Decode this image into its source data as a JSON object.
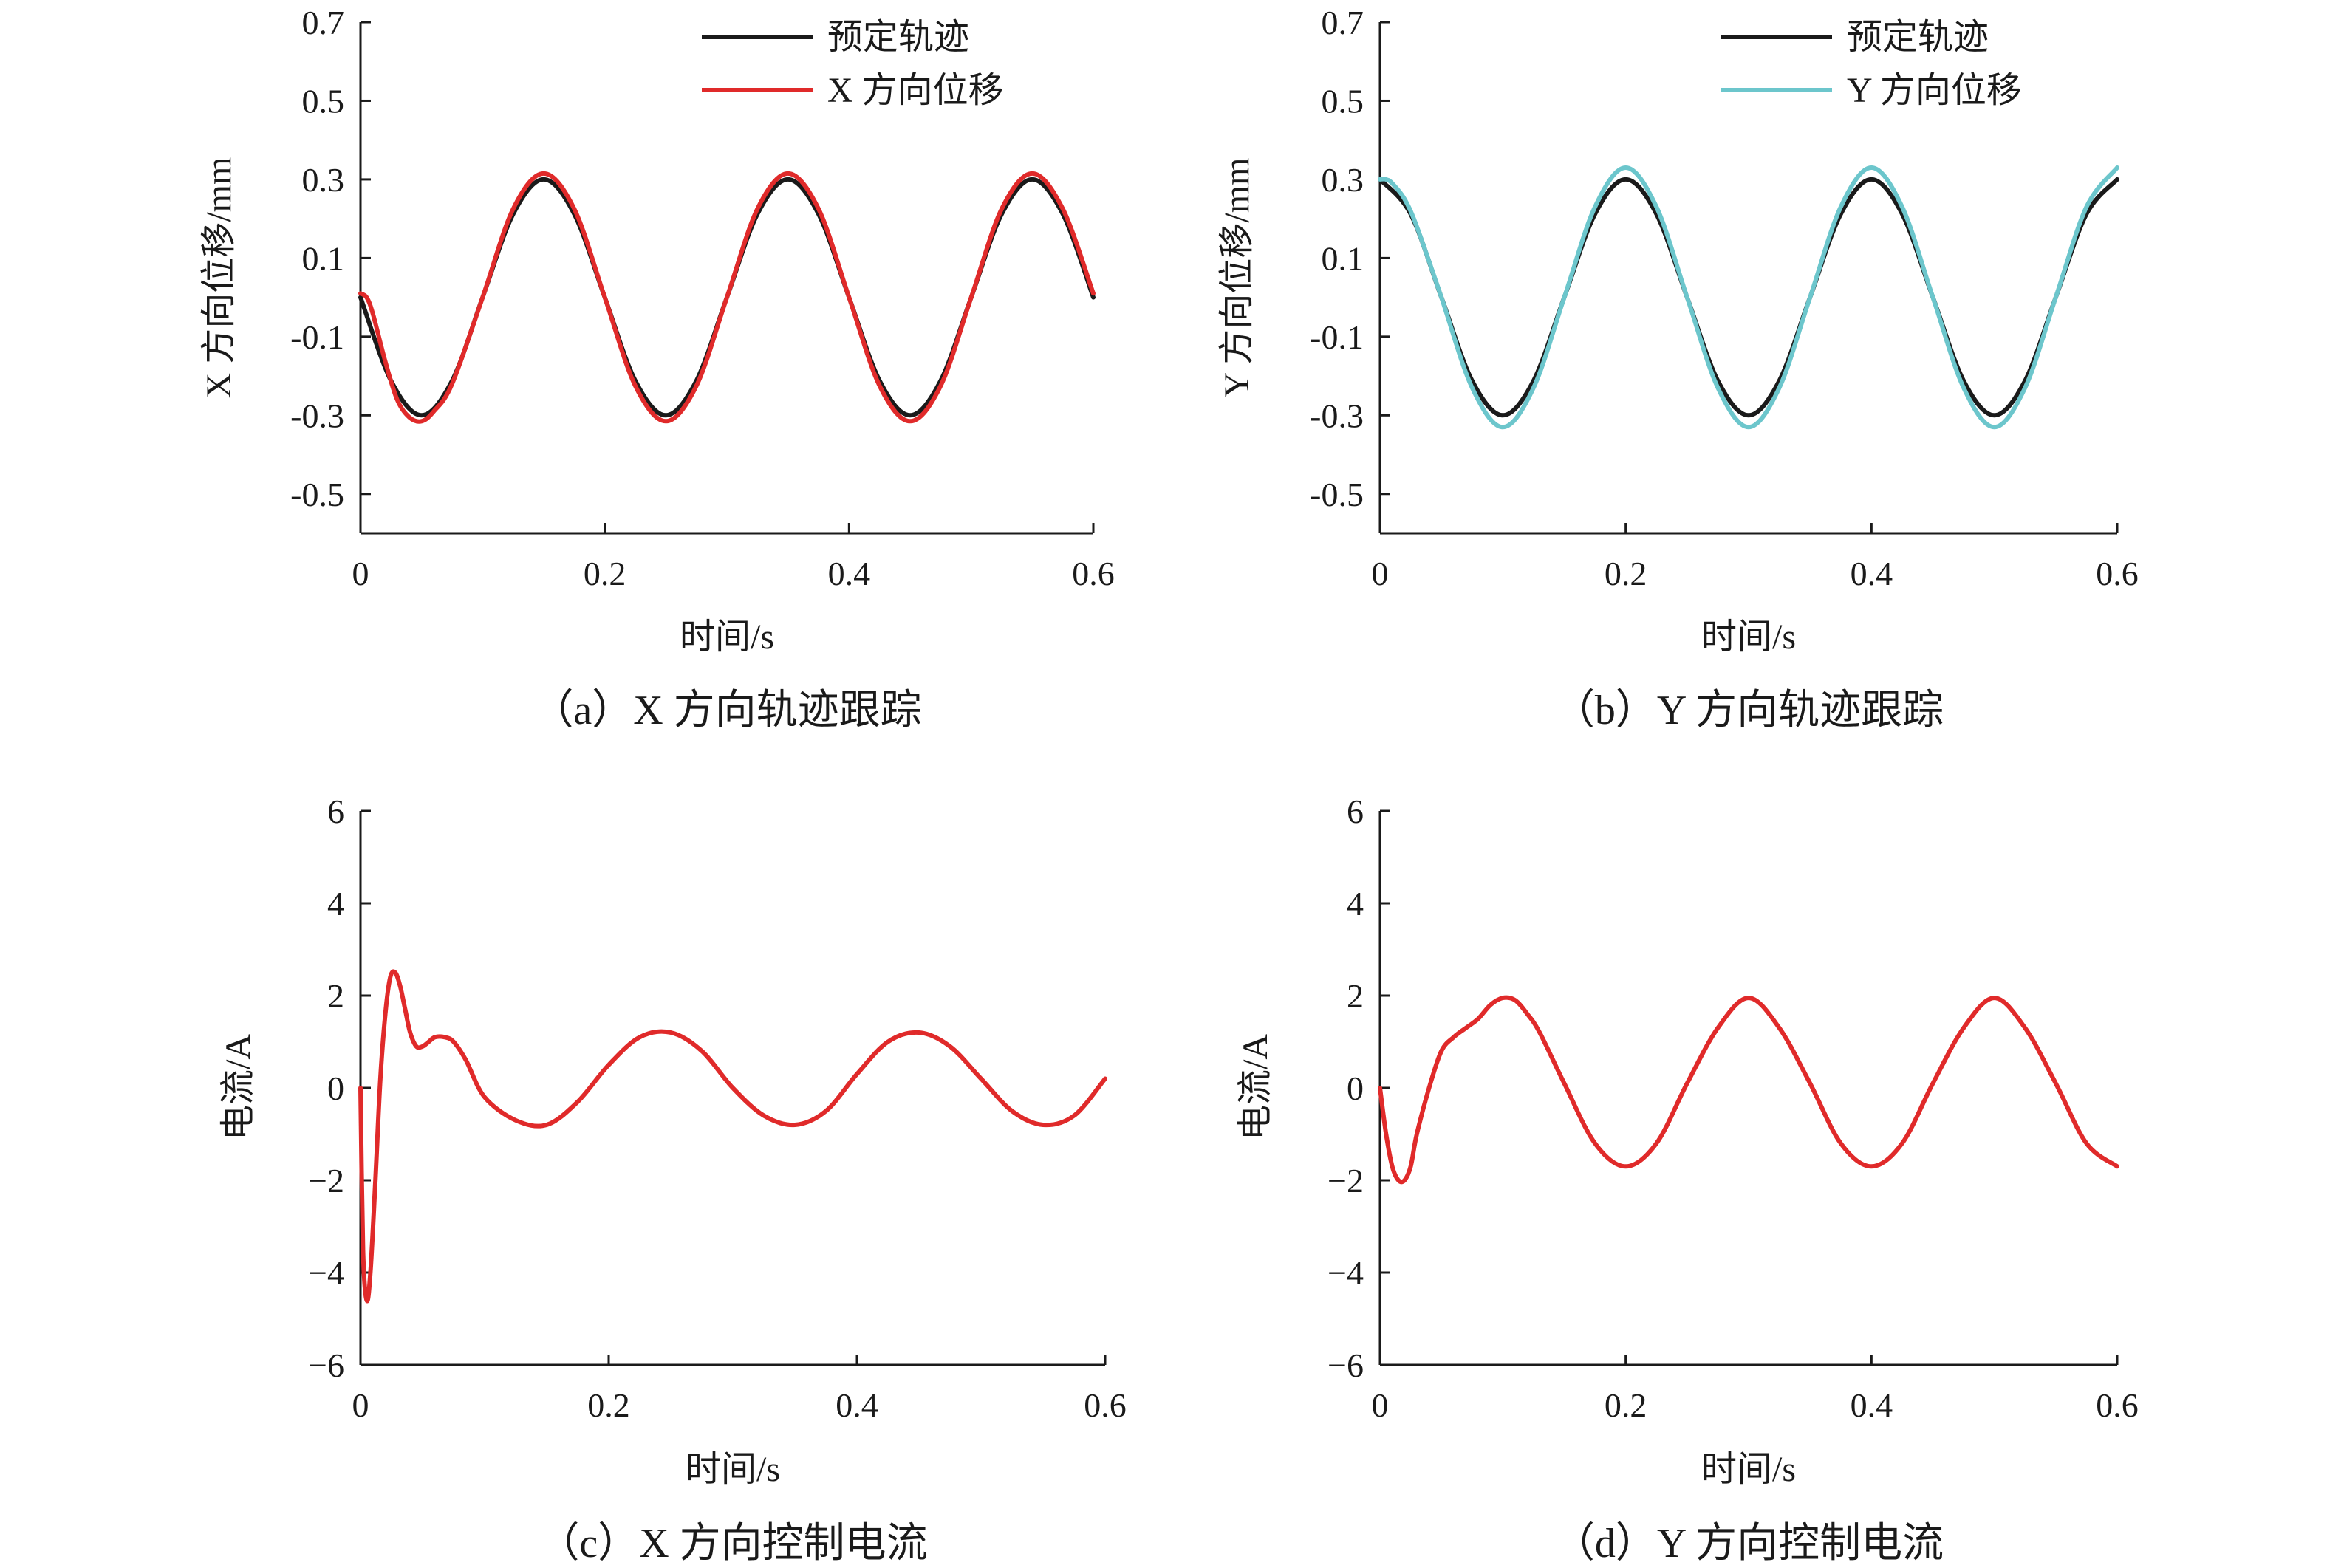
{
  "chart_data": [
    {
      "type": "line",
      "caption": "（a）X 方向轨迹跟踪",
      "xlabel": "时间/s",
      "ylabel": "X 方向位移/mm",
      "xlim": [
        0,
        0.6
      ],
      "ylim": [
        -0.6,
        0.7
      ],
      "xticks": [
        "0",
        "0.2",
        "0.4",
        "0.6"
      ],
      "yticks": [
        "-0.5",
        "-0.3",
        "-0.1",
        "0.1",
        "0.3",
        "0.5",
        "0.7"
      ],
      "legend_position": "top-right",
      "series": [
        {
          "name": "预定轨迹",
          "color": "#1a1a1a",
          "x": [
            0,
            0.025,
            0.05,
            0.075,
            0.1,
            0.125,
            0.15,
            0.175,
            0.2,
            0.225,
            0.25,
            0.275,
            0.3,
            0.325,
            0.35,
            0.375,
            0.4,
            0.425,
            0.45,
            0.475,
            0.5,
            0.525,
            0.55,
            0.575,
            0.6
          ],
          "y": [
            0,
            -0.212,
            -0.3,
            -0.212,
            0,
            0.212,
            0.3,
            0.212,
            0,
            -0.212,
            -0.3,
            -0.212,
            0,
            0.212,
            0.3,
            0.212,
            0,
            -0.212,
            -0.3,
            -0.212,
            0,
            0.212,
            0.3,
            0.212,
            0
          ]
        },
        {
          "name": "X 方向位移",
          "color": "#e02a2a",
          "x": [
            0,
            0.005,
            0.01,
            0.02,
            0.03,
            0.04,
            0.05,
            0.06,
            0.075,
            0.1,
            0.125,
            0.15,
            0.175,
            0.2,
            0.225,
            0.25,
            0.275,
            0.3,
            0.325,
            0.35,
            0.375,
            0.4,
            0.425,
            0.45,
            0.475,
            0.5,
            0.525,
            0.55,
            0.575,
            0.6
          ],
          "y": [
            0.01,
            0.0,
            -0.04,
            -0.16,
            -0.26,
            -0.305,
            -0.315,
            -0.29,
            -0.22,
            0.0,
            0.225,
            0.315,
            0.225,
            0.0,
            -0.225,
            -0.315,
            -0.225,
            0.0,
            0.225,
            0.315,
            0.225,
            0.0,
            -0.225,
            -0.315,
            -0.225,
            0.0,
            0.225,
            0.315,
            0.225,
            0.01
          ]
        }
      ]
    },
    {
      "type": "line",
      "caption": "（b）Y 方向轨迹跟踪",
      "xlabel": "时间/s",
      "ylabel": "Y 方向位移/mm",
      "xlim": [
        0,
        0.6
      ],
      "ylim": [
        -0.6,
        0.7
      ],
      "xticks": [
        "0",
        "0.2",
        "0.4",
        "0.6"
      ],
      "yticks": [
        "-0.5",
        "-0.3",
        "-0.1",
        "0.1",
        "0.3",
        "0.5",
        "0.7"
      ],
      "legend_position": "top-right",
      "series": [
        {
          "name": "预定轨迹",
          "color": "#1a1a1a",
          "x": [
            0,
            0.025,
            0.05,
            0.075,
            0.1,
            0.125,
            0.15,
            0.175,
            0.2,
            0.225,
            0.25,
            0.275,
            0.3,
            0.325,
            0.35,
            0.375,
            0.4,
            0.425,
            0.45,
            0.475,
            0.5,
            0.525,
            0.55,
            0.575,
            0.6
          ],
          "y": [
            0.3,
            0.212,
            0,
            -0.212,
            -0.3,
            -0.212,
            0,
            0.212,
            0.3,
            0.212,
            0,
            -0.212,
            -0.3,
            -0.212,
            0,
            0.212,
            0.3,
            0.212,
            0,
            -0.212,
            -0.3,
            -0.212,
            0,
            0.212,
            0.3
          ]
        },
        {
          "name": "Y 方向位移",
          "color": "#6cc6cc",
          "x": [
            0,
            0.005,
            0.01,
            0.02,
            0.03,
            0.05,
            0.075,
            0.1,
            0.125,
            0.15,
            0.175,
            0.2,
            0.225,
            0.25,
            0.275,
            0.3,
            0.325,
            0.35,
            0.375,
            0.4,
            0.425,
            0.45,
            0.475,
            0.5,
            0.525,
            0.55,
            0.575,
            0.6
          ],
          "y": [
            0.3,
            0.3,
            0.29,
            0.25,
            0.18,
            0.0,
            -0.23,
            -0.33,
            -0.23,
            0.0,
            0.23,
            0.33,
            0.23,
            0.0,
            -0.23,
            -0.33,
            -0.23,
            0.0,
            0.23,
            0.33,
            0.23,
            0.0,
            -0.23,
            -0.33,
            -0.23,
            0.0,
            0.23,
            0.33
          ]
        }
      ]
    },
    {
      "type": "line",
      "caption": "（c）X 方向控制电流",
      "xlabel": "时间/s",
      "ylabel": "电流/A",
      "xlim": [
        0,
        0.6
      ],
      "ylim": [
        -6,
        6
      ],
      "xticks": [
        "0",
        "0.2",
        "0.4",
        "0.6"
      ],
      "yticks": [
        "−6",
        "−4",
        "−2",
        "0",
        "2",
        "4",
        "6"
      ],
      "series": [
        {
          "color": "#e02a2a",
          "x": [
            0,
            0.002,
            0.005,
            0.008,
            0.012,
            0.016,
            0.02,
            0.024,
            0.028,
            0.032,
            0.036,
            0.04,
            0.045,
            0.05,
            0.055,
            0.06,
            0.068,
            0.075,
            0.085,
            0.1,
            0.125,
            0.15,
            0.175,
            0.2,
            0.225,
            0.25,
            0.275,
            0.3,
            0.325,
            0.35,
            0.375,
            0.4,
            0.425,
            0.45,
            0.475,
            0.5,
            0.525,
            0.55,
            0.575,
            0.6
          ],
          "y": [
            0,
            -3.5,
            -4.6,
            -4.0,
            -2.0,
            0.2,
            1.6,
            2.4,
            2.5,
            2.2,
            1.7,
            1.2,
            0.9,
            0.9,
            1.0,
            1.1,
            1.1,
            1.0,
            0.6,
            -0.2,
            -0.7,
            -0.8,
            -0.3,
            0.5,
            1.1,
            1.2,
            0.8,
            0.0,
            -0.6,
            -0.8,
            -0.5,
            0.3,
            1.0,
            1.2,
            0.9,
            0.2,
            -0.5,
            -0.8,
            -0.6,
            0.2
          ]
        }
      ]
    },
    {
      "type": "line",
      "caption": "（d）Y 方向控制电流",
      "xlabel": "时间/s",
      "ylabel": "电流/A",
      "xlim": [
        0,
        0.6
      ],
      "ylim": [
        -6,
        6
      ],
      "xticks": [
        "0",
        "0.2",
        "0.4",
        "0.6"
      ],
      "yticks": [
        "−6",
        "−4",
        "−2",
        "0",
        "2",
        "4",
        "6"
      ],
      "series": [
        {
          "color": "#e02a2a",
          "x": [
            0,
            0.005,
            0.01,
            0.015,
            0.02,
            0.025,
            0.03,
            0.04,
            0.05,
            0.06,
            0.07,
            0.08,
            0.09,
            0.1,
            0.11,
            0.12,
            0.13,
            0.15,
            0.175,
            0.2,
            0.225,
            0.25,
            0.275,
            0.3,
            0.325,
            0.35,
            0.375,
            0.4,
            0.425,
            0.45,
            0.475,
            0.5,
            0.525,
            0.55,
            0.575,
            0.6
          ],
          "y": [
            0,
            -1.0,
            -1.7,
            -2.0,
            -2.0,
            -1.7,
            -1.0,
            0.0,
            0.8,
            1.1,
            1.3,
            1.5,
            1.8,
            1.95,
            1.9,
            1.6,
            1.2,
            0.1,
            -1.2,
            -1.7,
            -1.2,
            0.1,
            1.3,
            1.95,
            1.3,
            0.1,
            -1.2,
            -1.7,
            -1.2,
            0.1,
            1.3,
            1.95,
            1.3,
            0.1,
            -1.2,
            -1.7
          ]
        }
      ]
    }
  ]
}
